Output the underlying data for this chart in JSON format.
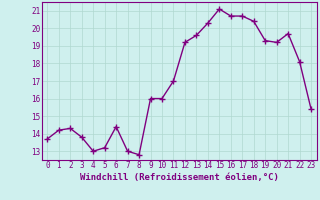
{
  "x": [
    0,
    1,
    2,
    3,
    4,
    5,
    6,
    7,
    8,
    9,
    10,
    11,
    12,
    13,
    14,
    15,
    16,
    17,
    18,
    19,
    20,
    21,
    22,
    23
  ],
  "y": [
    13.7,
    14.2,
    14.3,
    13.8,
    13.0,
    13.2,
    14.4,
    13.0,
    12.8,
    16.0,
    16.0,
    17.0,
    19.2,
    19.6,
    20.3,
    21.1,
    20.7,
    20.7,
    20.4,
    19.3,
    19.2,
    19.7,
    18.1,
    15.4
  ],
  "line_color": "#800080",
  "marker": "+",
  "marker_size": 4,
  "marker_linewidth": 1.0,
  "background_color": "#cff0ee",
  "grid_color": "#b0d8d0",
  "xlabel": "Windchill (Refroidissement éolien,°C)",
  "xlabel_fontsize": 6.5,
  "ylim": [
    12.5,
    21.5
  ],
  "yticks": [
    13,
    14,
    15,
    16,
    17,
    18,
    19,
    20,
    21
  ],
  "xticks": [
    0,
    1,
    2,
    3,
    4,
    5,
    6,
    7,
    8,
    9,
    10,
    11,
    12,
    13,
    14,
    15,
    16,
    17,
    18,
    19,
    20,
    21,
    22,
    23
  ],
  "tick_fontsize": 5.5,
  "line_width": 1.0,
  "spine_color": "#800080"
}
